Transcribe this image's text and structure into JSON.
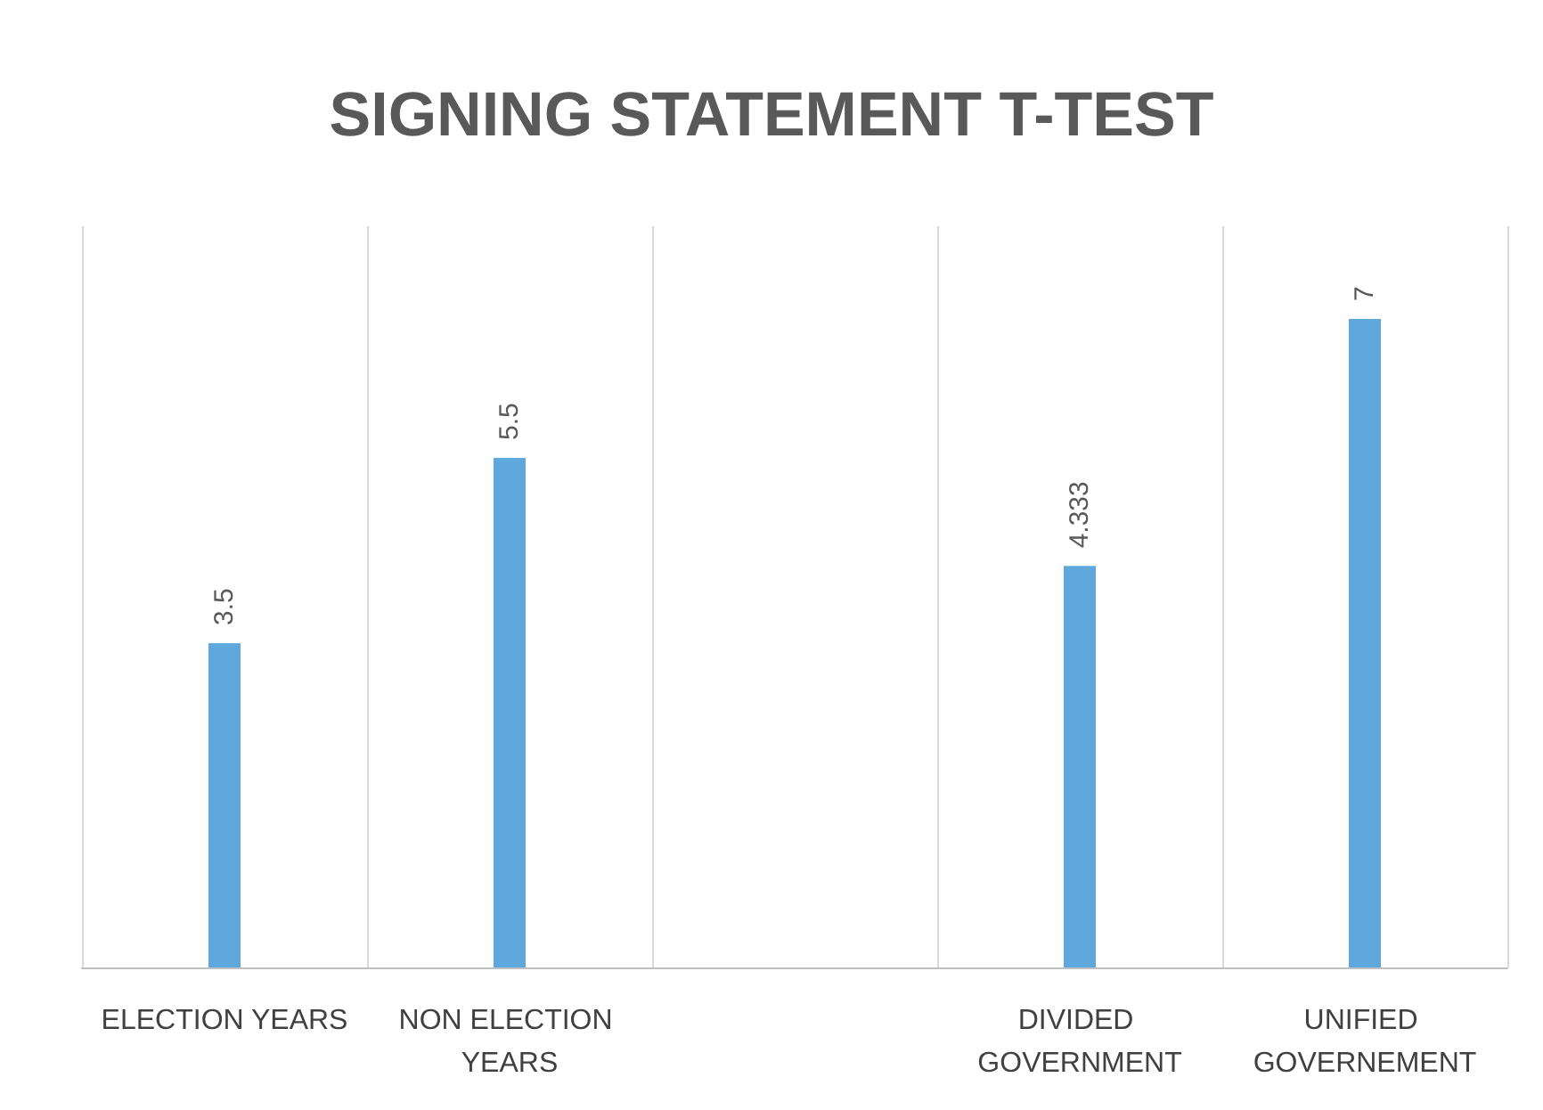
{
  "chart_data": {
    "type": "bar",
    "title": "SIGNING STATEMENT T-TEST",
    "categories": [
      "ELECTION YEARS",
      "NON ELECTION YEARS",
      null,
      "DIVIDED GOVERNMENT",
      "UNIFIED GOVERNEMENT"
    ],
    "values": [
      3.5,
      5.5,
      null,
      4.333,
      7
    ],
    "color": "#5fa8dc",
    "ylim": [
      0,
      8
    ],
    "tick_labels": "x",
    "grid": "x",
    "data_labels": true
  }
}
